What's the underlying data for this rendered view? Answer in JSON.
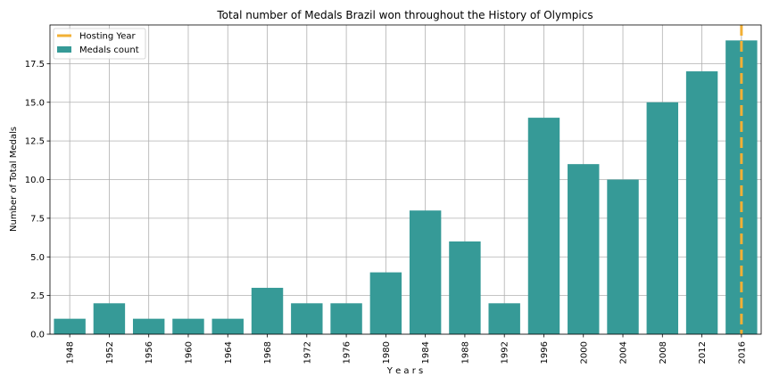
{
  "chart_data": {
    "type": "bar",
    "title": "Total number of Medals Brazil won throughout the History of Olympics",
    "xlabel": "Y e a r s",
    "ylabel": "Number of Total Medals",
    "categories": [
      "1948",
      "1952",
      "1956",
      "1960",
      "1964",
      "1968",
      "1972",
      "1976",
      "1980",
      "1984",
      "1988",
      "1992",
      "1996",
      "2000",
      "2004",
      "2008",
      "2012",
      "2016"
    ],
    "series": [
      {
        "name": "Medals count",
        "values": [
          1,
          2,
          1,
          1,
          1,
          3,
          2,
          2,
          4,
          8,
          6,
          2,
          14,
          11,
          10,
          15,
          17,
          19
        ],
        "color": "#369a97"
      }
    ],
    "hosting_line": {
      "label": "Hosting Year",
      "category": "2016",
      "color": "#f2b035"
    },
    "ylim": [
      0,
      20
    ],
    "yticks": [
      "0.0",
      "2.5",
      "5.0",
      "7.5",
      "10.0",
      "12.5",
      "15.0",
      "17.5"
    ],
    "grid": true,
    "legend": "top-left"
  }
}
